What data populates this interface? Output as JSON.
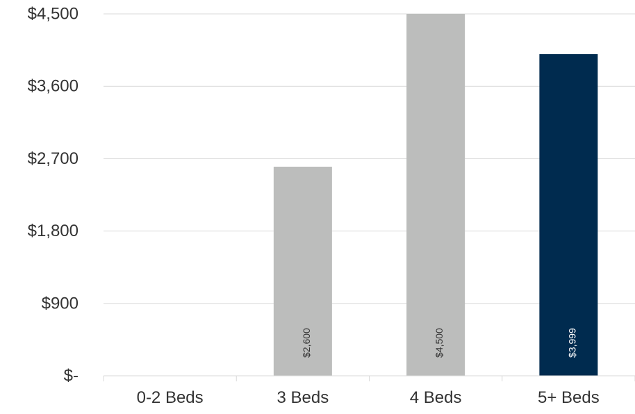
{
  "chart_data": {
    "type": "bar",
    "categories": [
      "0-2 Beds",
      "3 Beds",
      "4 Beds",
      "5+ Beds"
    ],
    "values": [
      null,
      2600,
      4500,
      3999
    ],
    "data_labels": [
      "",
      "$2,600",
      "$4,500",
      "$3,999"
    ],
    "bar_colors": [
      "#bcbdbc",
      "#bcbdbc",
      "#bcbdbc",
      "#002b4f"
    ],
    "label_colors": [
      "#333333",
      "#333333",
      "#333333",
      "#ffffff"
    ],
    "ylim": [
      0,
      4500
    ],
    "yticks": [
      0,
      900,
      1800,
      2700,
      3600,
      4500
    ],
    "ytick_labels": [
      "$-",
      "$900",
      "$1,800",
      "$2,700",
      "$3,600",
      "$4,500"
    ],
    "grid": true,
    "title": "",
    "xlabel": "",
    "ylabel": ""
  }
}
